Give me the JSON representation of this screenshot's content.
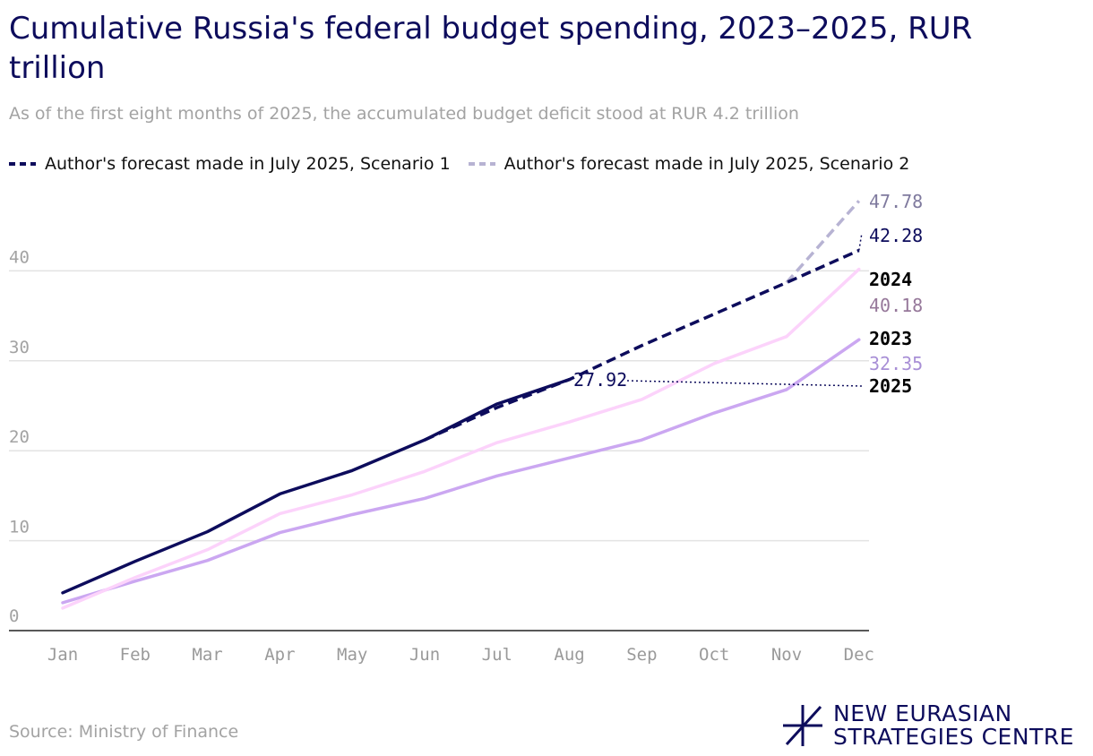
{
  "title": "Cumulative Russia's federal budget spending, 2023–2025, RUR trillion",
  "subtitle": "As of the first eight months of 2025, the accumulated budget deficit stood at RUR 4.2 trillion",
  "legend": [
    {
      "label": "Author's forecast made in July 2025, Scenario 1",
      "color": "#0d0c5c"
    },
    {
      "label": "Author's forecast made in July 2025, Scenario 2",
      "color": "#b7b3d3"
    }
  ],
  "source": "Source: Ministry of Finance",
  "logo": {
    "line1": "NEW EURASIAN",
    "line2": "STRATEGIES CENTRE"
  },
  "colors": {
    "navy": "#0d0c5c",
    "pink": "#fcd3fb",
    "lavender": "#cba7f1",
    "scenario2": "#b7b3d3",
    "grid": "#e3e3e3",
    "axis": "#9a9a9a"
  },
  "chart_data": {
    "type": "line",
    "categories": [
      "Jan",
      "Feb",
      "Mar",
      "Apr",
      "May",
      "Jun",
      "Jul",
      "Aug",
      "Sep",
      "Oct",
      "Nov",
      "Dec"
    ],
    "ylim": [
      0,
      47.78
    ],
    "yticks": [
      0,
      10,
      20,
      30,
      40
    ],
    "grid": true,
    "series": [
      {
        "name": "2025",
        "color": "#0d0c5c",
        "style": "solid",
        "values": [
          4.2,
          7.7,
          11.0,
          15.2,
          17.8,
          21.2,
          25.2,
          27.92,
          null,
          null,
          null,
          null
        ]
      },
      {
        "name": "2024",
        "color": "#fcd3fb",
        "style": "solid",
        "values": [
          2.5,
          5.9,
          9.0,
          13.0,
          15.1,
          17.7,
          20.9,
          23.2,
          25.7,
          29.7,
          32.7,
          40.18
        ]
      },
      {
        "name": "2023",
        "color": "#cba7f1",
        "style": "solid",
        "values": [
          3.1,
          5.5,
          7.8,
          10.9,
          12.9,
          14.7,
          17.2,
          19.2,
          21.2,
          24.2,
          26.8,
          32.35
        ]
      },
      {
        "name": "Author's forecast made in July 2025, Scenario 1",
        "color": "#0d0c5c",
        "style": "dashed",
        "values": [
          null,
          null,
          null,
          null,
          null,
          21.2,
          24.8,
          27.92,
          31.7,
          35.2,
          38.7,
          42.28
        ]
      },
      {
        "name": "Author's forecast made in July 2025, Scenario 2",
        "color": "#b7b3d3",
        "style": "dashed",
        "values": [
          null,
          null,
          null,
          null,
          null,
          null,
          null,
          null,
          null,
          null,
          38.7,
          47.78
        ]
      }
    ],
    "annotations": [
      {
        "text": "47.78",
        "color": "#7f7a9e",
        "bold": false
      },
      {
        "text": "42.28",
        "color": "#0d0c5c",
        "bold": false
      },
      {
        "text": "2024",
        "color": "#000000",
        "bold": true
      },
      {
        "text": "40.18",
        "color": "#96789a",
        "bold": false
      },
      {
        "text": "2023",
        "color": "#000000",
        "bold": true
      },
      {
        "text": "32.35",
        "color": "#a88fd6",
        "bold": false
      },
      {
        "text": "2025",
        "color": "#000000",
        "bold": true
      },
      {
        "text": "27.92",
        "color": "#0d0c5c",
        "bold": false
      }
    ]
  }
}
